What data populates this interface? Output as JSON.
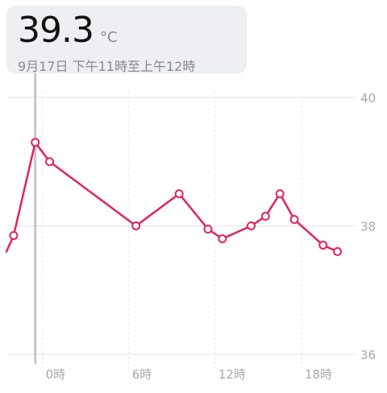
{
  "tooltip": {
    "value": "39.3",
    "unit": "°C",
    "time_range": "9月17日 下午11時至上午12時"
  },
  "colors": {
    "line": "#e0245e",
    "marker_fill": "#ffffff",
    "grid": "#e5e5ea",
    "axis_text": "#a7a7ab",
    "cursor": "#c7c7cc",
    "tooltip_bg": "#eeeff3"
  },
  "chart_data": {
    "type": "line",
    "x_unit": "hours from midnight",
    "xlim": [
      -2.5,
      21.7
    ],
    "ylim": [
      36,
      40
    ],
    "y_ticks": [
      {
        "value": 40,
        "label": "40"
      },
      {
        "value": 38,
        "label": "38"
      },
      {
        "value": 36,
        "label": "36"
      }
    ],
    "x_ticks": [
      {
        "value": 0,
        "label": "0時"
      },
      {
        "value": 6,
        "label": "6時"
      },
      {
        "value": 12,
        "label": "12時"
      },
      {
        "value": 18,
        "label": "18時"
      }
    ],
    "cursor_x": -0.5,
    "grid": true,
    "series": [
      {
        "points": [
          {
            "x": -2.5,
            "y": 37.6
          },
          {
            "x": -2.0,
            "y": 37.85
          },
          {
            "x": -0.5,
            "y": 39.3
          },
          {
            "x": 0.5,
            "y": 39.0
          },
          {
            "x": 6.5,
            "y": 38.0
          },
          {
            "x": 9.5,
            "y": 38.5
          },
          {
            "x": 11.5,
            "y": 37.95
          },
          {
            "x": 12.5,
            "y": 37.8
          },
          {
            "x": 14.5,
            "y": 38.0
          },
          {
            "x": 15.5,
            "y": 38.15
          },
          {
            "x": 16.5,
            "y": 38.5
          },
          {
            "x": 17.5,
            "y": 38.1
          },
          {
            "x": 19.5,
            "y": 37.7
          },
          {
            "x": 20.5,
            "y": 37.6
          }
        ]
      }
    ]
  }
}
